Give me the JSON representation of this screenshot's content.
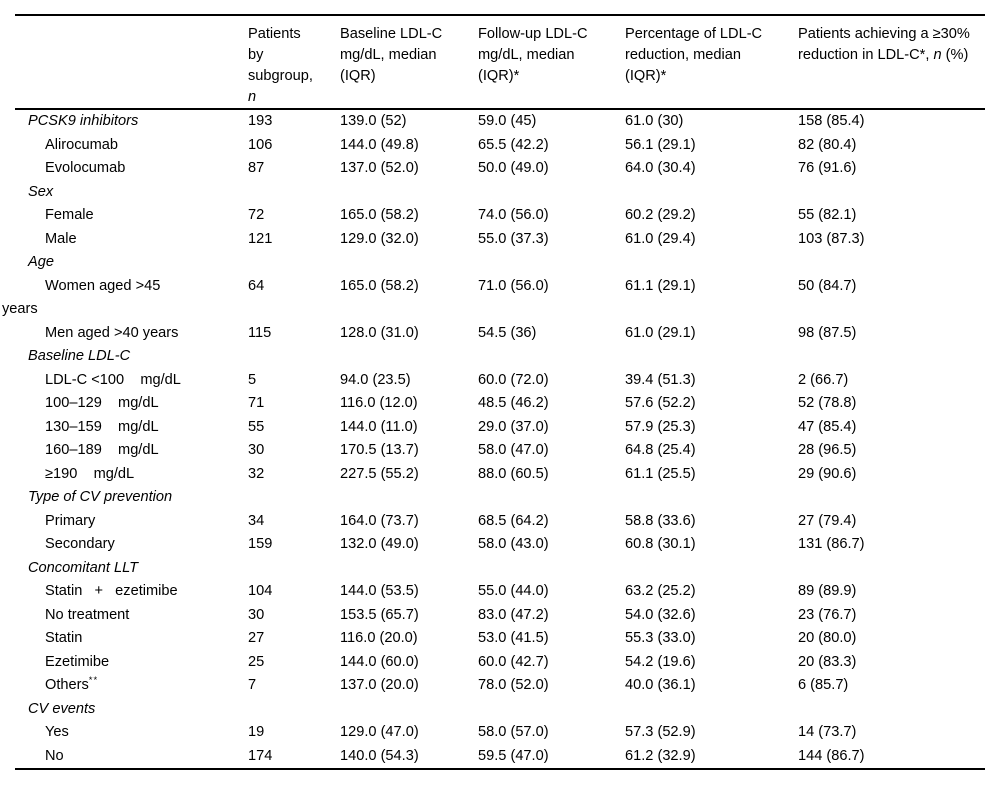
{
  "table": {
    "columns": [
      {
        "header": []
      },
      {
        "header": [
          {
            "t": "Patients by subgroup, "
          },
          {
            "t": "n",
            "i": true
          }
        ]
      },
      {
        "header": [
          {
            "t": "Baseline LDL-C mg/dL, median (IQR)"
          }
        ]
      },
      {
        "header": [
          {
            "t": "Follow-up LDL-C mg/dL, median (IQR)*"
          }
        ]
      },
      {
        "header": [
          {
            "t": "Percentage of LDL-C reduction, median (IQR)*"
          }
        ]
      },
      {
        "header": [
          {
            "t": "Patients achieving a ≥30% reduction in LDL-C*, "
          },
          {
            "t": "n",
            "i": true
          },
          {
            "t": " (%)"
          }
        ]
      }
    ],
    "rows": [
      {
        "type": "section",
        "label": "PCSK9 inhibitors",
        "cells": [
          "193",
          "139.0 (52)",
          "59.0 (45)",
          "61.0 (30)",
          "158 (85.4)"
        ]
      },
      {
        "type": "item",
        "label": "Alirocumab",
        "cells": [
          "106",
          "144.0 (49.8)",
          "65.5 (42.2)",
          "56.1 (29.1)",
          "82 (80.4)"
        ]
      },
      {
        "type": "item",
        "label": "Evolocumab",
        "cells": [
          "87",
          "137.0 (52.0)",
          "50.0 (49.0)",
          "64.0 (30.4)",
          "76 (91.6)"
        ]
      },
      {
        "type": "section",
        "label": "Sex",
        "cells": [
          "",
          "",
          "",
          "",
          ""
        ]
      },
      {
        "type": "item",
        "label": "Female",
        "cells": [
          "72",
          "165.0 (58.2)",
          "74.0 (56.0)",
          "60.2 (29.2)",
          "55 (82.1)"
        ]
      },
      {
        "type": "item",
        "label": "Male",
        "cells": [
          "121",
          "129.0 (32.0)",
          "55.0 (37.3)",
          "61.0 (29.4)",
          "103 (87.3)"
        ]
      },
      {
        "type": "section",
        "label": "Age",
        "cells": [
          "",
          "",
          "",
          "",
          ""
        ]
      },
      {
        "type": "item",
        "label": "Women aged >45\nyears",
        "cells": [
          "64",
          "165.0 (58.2)",
          "71.0 (56.0)",
          "61.1 (29.1)",
          "50 (84.7)"
        ]
      },
      {
        "type": "item",
        "label": "Men aged >40 years",
        "cells": [
          "115",
          "128.0 (31.0)",
          "54.5 (36)",
          "61.0 (29.1)",
          "98 (87.5)"
        ]
      },
      {
        "type": "section",
        "label": "Baseline LDL-C",
        "cells": [
          "",
          "",
          "",
          "",
          ""
        ]
      },
      {
        "type": "item",
        "label": "LDL-C <100    mg/dL",
        "cells": [
          "5",
          "94.0 (23.5)",
          "60.0 (72.0)",
          "39.4 (51.3)",
          "2 (66.7)"
        ]
      },
      {
        "type": "item",
        "label": "100–129    mg/dL",
        "cells": [
          "71",
          "116.0 (12.0)",
          "48.5 (46.2)",
          "57.6 (52.2)",
          "52 (78.8)"
        ]
      },
      {
        "type": "item",
        "label": "130–159    mg/dL",
        "cells": [
          "55",
          "144.0 (11.0)",
          "29.0 (37.0)",
          "57.9 (25.3)",
          "47 (85.4)"
        ]
      },
      {
        "type": "item",
        "label": "160–189    mg/dL",
        "cells": [
          "30",
          "170.5 (13.7)",
          "58.0 (47.0)",
          "64.8 (25.4)",
          "28 (96.5)"
        ]
      },
      {
        "type": "item",
        "label": "≥190    mg/dL",
        "cells": [
          "32",
          "227.5 (55.2)",
          "88.0 (60.5)",
          "61.1 (25.5)",
          "29 (90.6)"
        ]
      },
      {
        "type": "section",
        "label": "Type of CV prevention",
        "cells": [
          "",
          "",
          "",
          "",
          ""
        ]
      },
      {
        "type": "item",
        "label": "Primary",
        "cells": [
          "34",
          "164.0 (73.7)",
          "68.5 (64.2)",
          "58.8 (33.6)",
          "27 (79.4)"
        ]
      },
      {
        "type": "item",
        "label": "Secondary",
        "cells": [
          "159",
          "132.0 (49.0)",
          "58.0 (43.0)",
          "60.8 (30.1)",
          "131 (86.7)"
        ]
      },
      {
        "type": "section",
        "label": "Concomitant LLT",
        "cells": [
          "",
          "",
          "",
          "",
          ""
        ]
      },
      {
        "type": "item",
        "label": "Statin   +   ezetimibe",
        "cells": [
          "104",
          "144.0 (53.5)",
          "55.0 (44.0)",
          "63.2 (25.2)",
          "89 (89.9)"
        ]
      },
      {
        "type": "item",
        "label": "No treatment",
        "cells": [
          "30",
          "153.5 (65.7)",
          "83.0 (47.2)",
          "54.0 (32.6)",
          "23 (76.7)"
        ]
      },
      {
        "type": "item",
        "label": "Statin",
        "cells": [
          "27",
          "116.0 (20.0)",
          "53.0 (41.5)",
          "55.3 (33.0)",
          "20 (80.0)"
        ]
      },
      {
        "type": "item",
        "label": "Ezetimibe",
        "cells": [
          "25",
          "144.0 (60.0)",
          "60.0 (42.7)",
          "54.2 (19.6)",
          "20 (83.3)"
        ]
      },
      {
        "type": "item",
        "label": "Others",
        "label_sup": "**",
        "cells": [
          "7",
          "137.0 (20.0)",
          "78.0 (52.0)",
          "40.0 (36.1)",
          "6 (85.7)"
        ]
      },
      {
        "type": "section",
        "label": "CV events",
        "cells": [
          "",
          "",
          "",
          "",
          ""
        ]
      },
      {
        "type": "item",
        "label": "Yes",
        "cells": [
          "19",
          "129.0 (47.0)",
          "58.0 (57.0)",
          "57.3 (52.9)",
          "14 (73.7)"
        ]
      },
      {
        "type": "item",
        "label": "No",
        "cells": [
          "174",
          "140.0 (54.3)",
          "59.5 (47.0)",
          "61.2 (32.9)",
          "144 (86.7)"
        ]
      }
    ]
  }
}
